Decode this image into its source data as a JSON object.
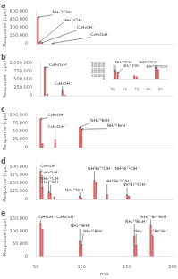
{
  "chart_data": [
    {
      "type": "bar",
      "title": "a",
      "ylabel": "Response (cps)",
      "x": [
        52,
        54,
        56,
        68
      ],
      "values": [
        490000,
        30000,
        15000,
        8000
      ],
      "color": "#d4676a",
      "xlim": [
        50,
        200
      ],
      "xticks": [
        50,
        100,
        150,
        200
      ],
      "ylim": [
        0,
        600000
      ],
      "yticks": [
        0,
        {
          "value": 150000,
          "label": "150,000"
        },
        {
          "value": 300000,
          "label": "300,000"
        },
        {
          "value": 450000,
          "label": "450,000"
        },
        {
          "value": 600000,
          "label": "600,000"
        }
      ],
      "grid": false,
      "tick_labels": "y",
      "annotations": [
        {
          "text": "NH₂⁷⁹ClH⁺",
          "x": 52,
          "y": 490000,
          "text_x": 68,
          "text_y": 540000
        },
        {
          "text": "NH₂⁷¹ClH⁺",
          "x": 54,
          "y": 30000,
          "text_x": 80,
          "text_y": 400000
        },
        {
          "text": "C₂H₅OH⁺",
          "x": 56,
          "y": 15000,
          "text_x": 95,
          "text_y": 260000
        },
        {
          "text": "C₂H₅O₂H⁺",
          "x": 68,
          "y": 8000,
          "text_x": 110,
          "text_y": 130000
        }
      ]
    },
    {
      "type": "bar",
      "title": "b",
      "ylabel": "Response (cps)",
      "x": [
        55,
        58,
        75,
        78
      ],
      "values": [
        870000,
        50000,
        130000,
        20000
      ],
      "color": "#d4676a",
      "xlim": [
        50,
        200
      ],
      "xticks": [
        50,
        100,
        150,
        200
      ],
      "ylim": [
        0,
        1000000
      ],
      "yticks": [
        0,
        {
          "value": 250000,
          "label": "250,000"
        },
        {
          "value": 500000,
          "label": "500,000"
        },
        {
          "value": 750000,
          "label": "750,000"
        },
        {
          "value": 1000000,
          "label": "1,000,000"
        }
      ],
      "grid": false,
      "tick_labels": "y",
      "annotations": [
        {
          "text": "C₂H₅O₂H⁺",
          "x": 55,
          "y": 870000,
          "text_x": 60,
          "text_y": 890000
        },
        {
          "text": "C₂H₅OH⁺",
          "x": 75,
          "y": 130000,
          "text_x": 66,
          "text_y": 310000
        }
      ],
      "inset": {
        "type": "bar",
        "x": [
          52,
          54,
          68,
          70,
          86,
          88
        ],
        "values": [
          260000,
          190000,
          100000,
          70000,
          340000,
          310000
        ],
        "color": "#d4676a",
        "xlim": [
          50,
          95
        ],
        "xticks": [
          50,
          60,
          70,
          80,
          90
        ],
        "ylim": [
          0,
          500000
        ],
        "yticks": [
          0,
          100000,
          200000,
          300000,
          400000,
          500000
        ],
        "grid": false,
        "annotations": [
          {
            "text": "NH₂⁷⁹ClH⁺",
            "x": 52,
            "y": 260000,
            "text_x": 52,
            "text_y": 460000
          },
          {
            "text": "NH₂⁷¹ClH⁺",
            "x": 54,
            "y": 190000,
            "text_x": 58,
            "text_y": 350000
          },
          {
            "text": "NH²¹ClO₂H⁺",
            "x": 86,
            "y": 340000,
            "text_x": 72,
            "text_y": 460000
          },
          {
            "text": "NH²³Cl²⁹ClH⁺",
            "x": 88,
            "y": 310000,
            "text_x": 78,
            "text_y": 340000
          }
        ]
      }
    },
    {
      "type": "bar",
      "title": "c",
      "ylabel": "Response (cps)",
      "x": [
        55,
        57,
        71,
        98,
        100
      ],
      "values": [
        88000,
        12000,
        20000,
        62000,
        57000
      ],
      "color": "#d4676a",
      "xlim": [
        50,
        200
      ],
      "xticks": [
        50,
        100,
        150,
        200
      ],
      "ylim": [
        0,
        100000
      ],
      "yticks": [
        0,
        {
          "value": 25000,
          "label": "25,000"
        },
        {
          "value": 50000,
          "label": "50,000"
        },
        {
          "value": 75000,
          "label": "75,000"
        },
        {
          "value": 100000,
          "label": "100,000"
        }
      ],
      "grid": false,
      "tick_labels": "y",
      "annotations": [
        {
          "text": "C₂H₅OH⁺",
          "x": 55,
          "y": 88000,
          "text_x": 63,
          "text_y": 93000
        },
        {
          "text": "C₂H₅O₂H⁺",
          "x": 71,
          "y": 20000,
          "text_x": 63,
          "text_y": 58000
        },
        {
          "text": "NH₂⁷⁹BrH⁺",
          "x": 98,
          "y": 62000,
          "text_x": 110,
          "text_y": 78000
        },
        {
          "text": "NH₂⁸¹BrH⁺",
          "x": 100,
          "y": 57000,
          "text_x": 128,
          "text_y": 60000
        }
      ]
    },
    {
      "type": "bar",
      "title": "d",
      "ylabel": "Response (cps)",
      "x": [
        55,
        57,
        64,
        66,
        70,
        98,
        100,
        114,
        116,
        128,
        150,
        152
      ],
      "values": [
        410000,
        170000,
        100000,
        75000,
        40000,
        35000,
        22000,
        275000,
        260000,
        55000,
        55000,
        50000
      ],
      "color": "#d4676a",
      "xlim": [
        50,
        200
      ],
      "xticks": [
        50,
        100,
        150,
        200
      ],
      "ylim": [
        0,
        500000
      ],
      "yticks": [
        0,
        {
          "value": 125000,
          "label": "125,000"
        },
        {
          "value": 250000,
          "label": "250,000"
        },
        {
          "value": 375000,
          "label": "375,000"
        },
        {
          "value": 500000,
          "label": "500,000"
        }
      ],
      "grid": false,
      "tick_labels": "y",
      "annotations": [
        {
          "text": "C₂H₅OH⁺",
          "x": 55,
          "y": 410000,
          "text_x": 55,
          "text_y": 478000
        },
        {
          "text": "C₂H₅O₂H⁺",
          "x": 57,
          "y": 170000,
          "text_x": 55,
          "text_y": 380000
        },
        {
          "text": "NH₂⁷¹ClH⁺",
          "x": 64,
          "y": 100000,
          "text_x": 55,
          "text_y": 290000
        },
        {
          "text": "NH₂⁷³ClH⁺",
          "x": 66,
          "y": 75000,
          "text_x": 55,
          "text_y": 230000
        },
        {
          "text": "NH₂⁷⁹BrH⁺",
          "x": 98,
          "y": 35000,
          "text_x": 82,
          "text_y": 115000
        },
        {
          "text": "NH²Br⁷⁹ClH⁺, NH²Br⁷¹ClH⁺",
          "x": 114,
          "y": 275000,
          "text_x": 107,
          "text_y": 445000
        },
        {
          "text": "NH²⁹Br⁷³ClH⁺",
          "x": 128,
          "y": 55000,
          "text_x": 126,
          "text_y": 240000
        },
        {
          "text": "NH²Br⁷³ClH⁺",
          "x": 150,
          "y": 55000,
          "text_x": 145,
          "text_y": 185000
        }
      ]
    },
    {
      "type": "bar",
      "title": "e",
      "ylabel": "Response (cps)",
      "xlabel": "m/z",
      "x": [
        55,
        57,
        98,
        100,
        158,
        160,
        176,
        178
      ],
      "values": [
        128000,
        108000,
        58000,
        42000,
        75000,
        38000,
        118000,
        75000
      ],
      "color": "#d4676a",
      "xlim": [
        50,
        200
      ],
      "xticks": [
        50,
        100,
        150,
        200
      ],
      "ylim": [
        0,
        150000
      ],
      "yticks": [
        0,
        {
          "value": 50000,
          "label": "50,000"
        },
        {
          "value": 100000,
          "label": "100,000"
        },
        {
          "value": 150000,
          "label": "150,000"
        }
      ],
      "grid": false,
      "annotations": [
        {
          "text": "C₂H₅OH⁺ C₂H₅O₂H⁺",
          "x": 55,
          "y": 128000,
          "text_x": 52,
          "text_y": 148000
        },
        {
          "text": "NH₂⁷⁹BrH⁺",
          "x": 98,
          "y": 58000,
          "text_x": 88,
          "text_y": 112000
        },
        {
          "text": "NH₂⁸¹BrH⁺",
          "x": 100,
          "y": 42000,
          "text_x": 102,
          "text_y": 92000
        },
        {
          "text": "NH₂⁷⁹Br₂H⁺",
          "x": 158,
          "y": 75000,
          "text_x": 148,
          "text_y": 132000
        },
        {
          "text": "⁹Br₂⁺",
          "x": 160,
          "y": 38000,
          "text_x": 158,
          "text_y": 90000
        },
        {
          "text": "NH₂⁷⁹Br⁸¹BrH⁺",
          "x": 176,
          "y": 118000,
          "text_x": 165,
          "text_y": 148000
        },
        {
          "text": "⁹Br⁸¹Br⁺",
          "x": 178,
          "y": 75000,
          "text_x": 178,
          "text_y": 90000
        }
      ]
    }
  ]
}
